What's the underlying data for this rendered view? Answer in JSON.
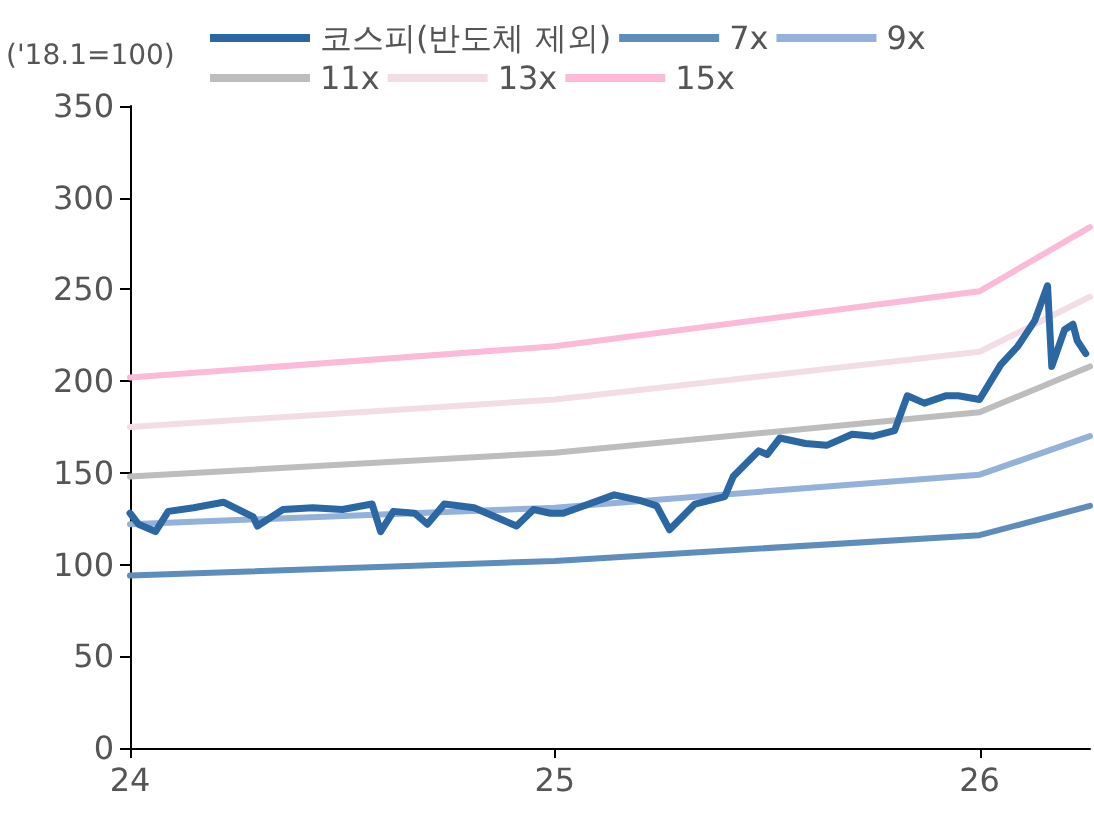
{
  "chart_data": {
    "type": "line",
    "ylabel": "('18.1=100)",
    "xlim": [
      24,
      26.26
    ],
    "xticks": [
      24,
      25,
      26
    ],
    "ylim": [
      0,
      350
    ],
    "yticks": [
      0,
      50,
      100,
      150,
      200,
      250,
      300,
      350
    ],
    "grid": false,
    "legend": "top",
    "marker": "none",
    "line_style": "solid",
    "series": [
      {
        "name": "코스피(반도체 제외)",
        "color": "#2b67a3",
        "x": [
          24.0,
          24.02,
          24.06,
          24.09,
          24.15,
          24.22,
          24.29,
          24.3,
          24.36,
          24.43,
          24.5,
          24.57,
          24.59,
          24.62,
          24.67,
          24.7,
          24.74,
          24.81,
          24.88,
          24.91,
          24.95,
          24.99,
          25.02,
          25.14,
          25.2,
          25.24,
          25.27,
          25.33,
          25.4,
          25.42,
          25.48,
          25.5,
          25.53,
          25.59,
          25.64,
          25.7,
          25.75,
          25.8,
          25.83,
          25.87,
          25.92,
          25.95,
          26.0,
          26.05,
          26.09,
          26.13,
          26.16,
          26.17,
          26.2,
          26.22,
          26.23,
          26.25
        ],
        "values": [
          128,
          122,
          118,
          129,
          131,
          134,
          126,
          121,
          130,
          131,
          130,
          133,
          118,
          129,
          128,
          122,
          133,
          131,
          124,
          121,
          130,
          128,
          128,
          138,
          135,
          132,
          119,
          133,
          137,
          148,
          162,
          160,
          169,
          166,
          165,
          171,
          170,
          173,
          192,
          188,
          192,
          192,
          190,
          209,
          219,
          233,
          252,
          208,
          228,
          231,
          222,
          215
        ]
      },
      {
        "name": "7x",
        "color": "#5f8dbb",
        "x": [
          24,
          25,
          26,
          26.26
        ],
        "values": [
          94,
          102,
          116,
          132
        ]
      },
      {
        "name": "9x",
        "color": "#94b1d9",
        "x": [
          24,
          25,
          26,
          26.26
        ],
        "values": [
          122,
          131,
          149,
          170
        ]
      },
      {
        "name": "11x",
        "color": "#bdbdbd",
        "x": [
          24,
          25,
          26,
          26.26
        ],
        "values": [
          148,
          161,
          183,
          208
        ]
      },
      {
        "name": "13x",
        "color": "#f2dde6",
        "x": [
          24,
          25,
          26,
          26.26
        ],
        "values": [
          175,
          190,
          216,
          246
        ]
      },
      {
        "name": "15x",
        "color": "#fbbad8",
        "x": [
          24,
          25,
          26,
          26.26
        ],
        "values": [
          202,
          219,
          249,
          284
        ]
      }
    ]
  }
}
